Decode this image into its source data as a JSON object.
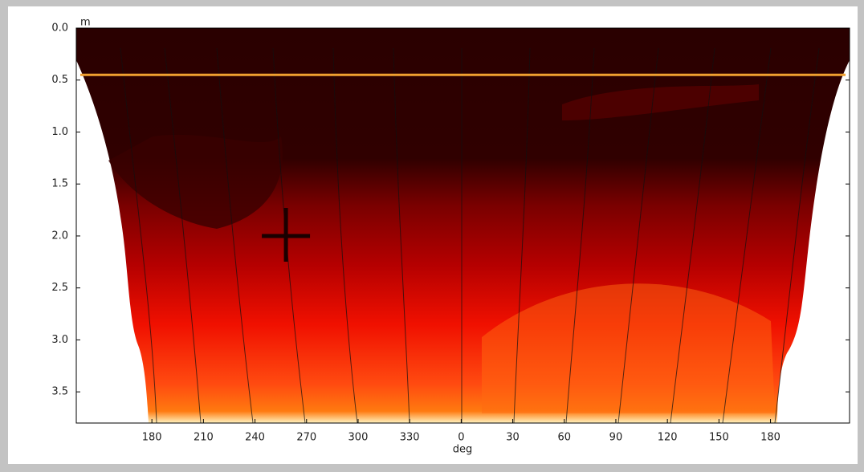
{
  "chart_data": {
    "type": "contour",
    "y_label": "m",
    "x_label": "deg",
    "xlim": [
      136,
      586
    ],
    "ylim": [
      0,
      3.8
    ],
    "y_inverted": true,
    "xticks": [
      180,
      210,
      240,
      270,
      300,
      330,
      {
        "value": 360,
        "label": "0"
      },
      {
        "value": 390,
        "label": "30"
      },
      {
        "value": 420,
        "label": "60"
      },
      {
        "value": 450,
        "label": "90"
      },
      {
        "value": 480,
        "label": "120"
      },
      {
        "value": 510,
        "label": "150"
      },
      {
        "value": 540,
        "label": "180"
      }
    ],
    "yticks": [
      {
        "value": 0,
        "label": "0.0"
      },
      0.5,
      {
        "value": 1,
        "label": "1.0"
      },
      1.5,
      {
        "value": 2,
        "label": "2.0"
      },
      2.5,
      {
        "value": 3,
        "label": "3.0"
      },
      3.5
    ],
    "hline": {
      "value": 0.45,
      "color": "#f0a030"
    },
    "marker": {
      "x": 258,
      "y": 2.0,
      "color": "#1a0000"
    }
  }
}
